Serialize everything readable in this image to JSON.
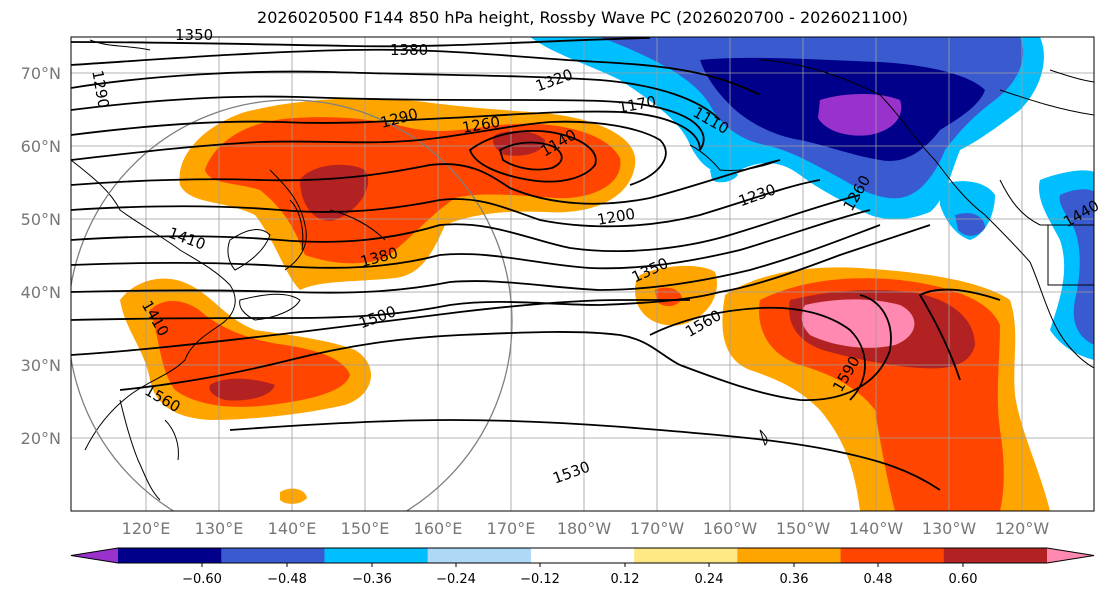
{
  "title": "2026020500 F144 850 hPa height, Rossby Wave PC (2026020700 - 2026021100)",
  "lat_labels": [
    "70°N",
    "60°N",
    "50°N",
    "40°N",
    "30°N",
    "20°N"
  ],
  "lon_labels": [
    "120°E",
    "130°E",
    "140°E",
    "150°E",
    "160°E",
    "170°E",
    "180°W",
    "170°W",
    "160°W",
    "150°W",
    "140°W",
    "130°W",
    "120°W"
  ],
  "contour_labels": [
    "1290",
    "1380",
    "1320",
    "1290",
    "1260",
    "1170",
    "1140",
    "1110",
    "1200",
    "1230",
    "1260",
    "1440",
    "1410",
    "1380",
    "1350",
    "1560",
    "1500",
    "1560",
    "1590",
    "1530",
    "1410",
    "1350"
  ],
  "colorbar": {
    "tick_labels": [
      "−0.60",
      "−0.48",
      "−0.36",
      "−0.24",
      "−0.12",
      "0.12",
      "0.24",
      "0.36",
      "0.48",
      "0.60"
    ],
    "colors": [
      "#9932CC",
      "#00008B",
      "#3A5BD0",
      "#00BFFF",
      "#ADD8F6",
      "#FFFFFF",
      "#FFE987",
      "#FFA500",
      "#FF4500",
      "#B22222",
      "#FF89B0"
    ]
  }
}
